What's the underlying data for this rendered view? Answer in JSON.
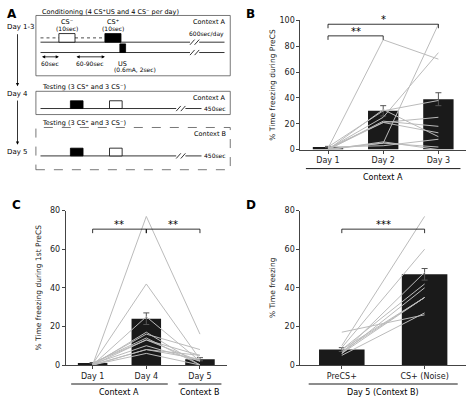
{
  "chart_data": [
    {
      "type": "diagram",
      "title": "A",
      "annotations": [
        "Day 1-3",
        "Day 4",
        "Day 5",
        "Conditioning (4 CS⁺US and 4 CS⁻ per day)",
        "CS⁻",
        "(10sec)",
        "CS⁺",
        "(10sec)",
        "Context A",
        "600sec/day",
        "60sec",
        "60-90sec",
        "US",
        "(0.6mA, 2sec)",
        "Testing (3 CS⁺ and 3 CS⁻)",
        "Context A",
        "450sec",
        "Testing (3 CS⁺ and 3 CS⁻)",
        "Context B",
        "450sec"
      ]
    },
    {
      "type": "bar",
      "title": "B",
      "categories": [
        "Day 1",
        "Day 2",
        "Day 3"
      ],
      "ylabel": "% Time freezing during PreCS",
      "ylim": [
        0,
        100
      ],
      "yticks": [
        0,
        20,
        40,
        60,
        80,
        100
      ],
      "grid": false,
      "series": [
        {
          "type": "line",
          "color": "#bbbbbb",
          "values": [
            2,
            30,
            38
          ]
        },
        {
          "type": "line",
          "color": "#bbbbbb",
          "values": [
            0,
            22,
            18
          ]
        },
        {
          "type": "line",
          "color": "#bbbbbb",
          "values": [
            1,
            21,
            25
          ]
        },
        {
          "type": "line",
          "color": "#bbbbbb",
          "values": [
            0,
            31,
            10
          ]
        },
        {
          "type": "line",
          "color": "#bbbbbb",
          "values": [
            2,
            3,
            8
          ]
        },
        {
          "type": "line",
          "color": "#bbbbbb",
          "values": [
            0,
            6,
            0
          ]
        },
        {
          "type": "line",
          "color": "#bbbbbb",
          "values": [
            0.5,
            5,
            2
          ]
        },
        {
          "type": "line",
          "color": "#bbbbbb",
          "values": [
            1,
            85,
            70
          ]
        },
        {
          "type": "line",
          "color": "#bbbbbb",
          "values": [
            0,
            5,
            97
          ]
        },
        {
          "type": "line",
          "color": "#bbbbbb",
          "values": [
            0.5,
            25,
            75
          ]
        },
        {
          "type": "line",
          "color": "#bbbbbb",
          "values": [
            0,
            21,
            13
          ]
        },
        {
          "type": "bar",
          "color": "#1a1a1a",
          "values": [
            2,
            30,
            39
          ],
          "errors": [
            0.5,
            4,
            5
          ]
        }
      ],
      "annotations": [
        {
          "text": "**",
          "span": [
            "Day 1",
            "Day 2"
          ]
        },
        {
          "text": "*",
          "span": [
            "Day 1",
            "Day 3"
          ]
        }
      ],
      "groups": [
        {
          "text": "Context A",
          "span": [
            "Day 1",
            "Day 3"
          ]
        }
      ]
    },
    {
      "type": "bar",
      "title": "C",
      "categories": [
        "Day 1",
        "Day 4",
        "Day 5"
      ],
      "ylabel": "% Time freezing during 1st PreCS",
      "ylim": [
        0,
        80
      ],
      "yticks": [
        0,
        20,
        40,
        60,
        80
      ],
      "grid": false,
      "series": [
        {
          "type": "line",
          "color": "#bbbbbb",
          "values": [
            0,
            25,
            2
          ]
        },
        {
          "type": "line",
          "color": "#bbbbbb",
          "values": [
            0,
            17,
            0
          ]
        },
        {
          "type": "line",
          "color": "#bbbbbb",
          "values": [
            0.5,
            42,
            3
          ]
        },
        {
          "type": "line",
          "color": "#bbbbbb",
          "values": [
            0,
            13,
            2
          ]
        },
        {
          "type": "line",
          "color": "#bbbbbb",
          "values": [
            1,
            13,
            5
          ]
        },
        {
          "type": "line",
          "color": "#bbbbbb",
          "values": [
            0.5,
            16,
            8
          ]
        },
        {
          "type": "line",
          "color": "#bbbbbb",
          "values": [
            1,
            14,
            0
          ]
        },
        {
          "type": "line",
          "color": "#bbbbbb",
          "values": [
            0,
            8,
            5
          ]
        },
        {
          "type": "line",
          "color": "#bbbbbb",
          "values": [
            0,
            8,
            3
          ]
        },
        {
          "type": "line",
          "color": "#bbbbbb",
          "values": [
            0,
            77,
            16
          ]
        },
        {
          "type": "line",
          "color": "#bbbbbb",
          "values": [
            0,
            6,
            0
          ]
        },
        {
          "type": "line",
          "color": "#bbbbbb",
          "values": [
            0.5,
            10,
            2
          ]
        },
        {
          "type": "bar",
          "color": "#1a1a1a",
          "values": [
            1,
            24,
            3
          ],
          "errors": [
            0.3,
            3,
            0.8
          ]
        }
      ],
      "annotations": [
        {
          "text": "**",
          "span": [
            "Day 1",
            "Day 4"
          ]
        },
        {
          "text": "**",
          "span": [
            "Day 4",
            "Day 5"
          ]
        }
      ],
      "groups": [
        {
          "text": "Context A",
          "span": [
            "Day 1",
            "Day 4"
          ]
        },
        {
          "text": "Context B",
          "span": [
            "Day 5",
            "Day 5"
          ]
        }
      ]
    },
    {
      "type": "bar",
      "title": "D",
      "categories": [
        "PreCS+",
        "CS+ (Noise)"
      ],
      "ylabel": "% Time freezing",
      "ylim": [
        0,
        80
      ],
      "yticks": [
        0,
        20,
        40,
        60,
        80
      ],
      "grid": false,
      "series": [
        {
          "type": "line",
          "color": "#bbbbbb",
          "values": [
            5,
            27
          ]
        },
        {
          "type": "line",
          "color": "#bbbbbb",
          "values": [
            6,
            48
          ]
        },
        {
          "type": "line",
          "color": "#bbbbbb",
          "values": [
            6,
            40
          ]
        },
        {
          "type": "line",
          "color": "#bbbbbb",
          "values": [
            7,
            35
          ]
        },
        {
          "type": "line",
          "color": "#bbbbbb",
          "values": [
            6,
            35
          ]
        },
        {
          "type": "line",
          "color": "#bbbbbb",
          "values": [
            8,
            42
          ]
        },
        {
          "type": "line",
          "color": "#bbbbbb",
          "values": [
            9,
            60
          ]
        },
        {
          "type": "line",
          "color": "#bbbbbb",
          "values": [
            10,
            77
          ]
        },
        {
          "type": "line",
          "color": "#bbbbbb",
          "values": [
            17,
            26
          ]
        },
        {
          "type": "line",
          "color": "#bbbbbb",
          "values": [
            8,
            35
          ]
        },
        {
          "type": "bar",
          "color": "#1a1a1a",
          "values": [
            8,
            47
          ],
          "errors": [
            1,
            3
          ]
        }
      ],
      "annotations": [
        {
          "text": "***",
          "span": [
            "PreCS+",
            "CS+ (Noise)"
          ]
        }
      ],
      "groups": [
        {
          "text": "Day 5 (Context B)",
          "span": [
            "PreCS+",
            "CS+ (Noise)"
          ]
        }
      ]
    }
  ]
}
